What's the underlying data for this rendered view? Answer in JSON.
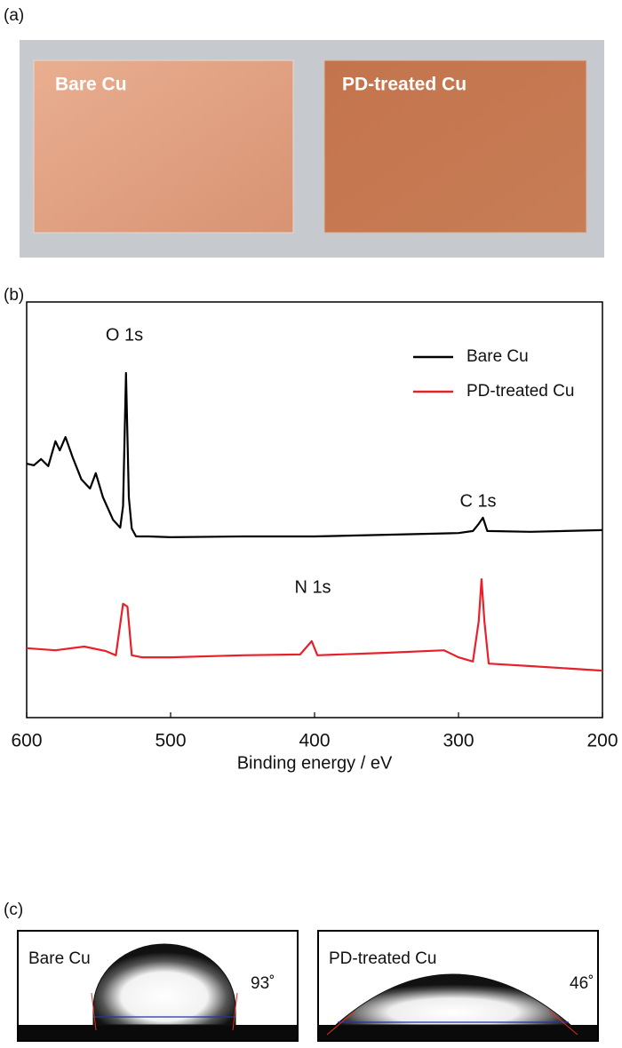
{
  "panel_a": {
    "label": "(a)",
    "photo_labels": [
      "Bare Cu",
      "PD-treated Cu"
    ]
  },
  "panel_b": {
    "label": "(b)"
  },
  "chart_data": {
    "type": "line",
    "xlabel": "Binding energy / eV",
    "xlim": [
      600,
      200
    ],
    "xticks": [
      600,
      500,
      400,
      300,
      200
    ],
    "ylim": [
      0,
      100
    ],
    "grid": false,
    "legend": "top-right",
    "annotations": [
      "O 1s",
      "C 1s",
      "N 1s"
    ],
    "series": [
      {
        "name": "Bare Cu",
        "color": "#000000",
        "x": [
          600,
          595,
          590,
          585,
          580,
          577,
          573,
          568,
          562,
          556,
          552,
          547,
          540,
          535,
          533,
          531,
          529,
          527,
          524,
          515,
          500,
          450,
          400,
          350,
          300,
          290,
          286,
          283,
          280,
          250,
          200
        ],
        "values": [
          61.1,
          60.7,
          62.2,
          60.5,
          66.5,
          64.3,
          67.5,
          62.6,
          57.3,
          55.1,
          58.8,
          53.0,
          47.6,
          45.7,
          50.9,
          82.9,
          53.0,
          45.5,
          43.6,
          43.6,
          43.4,
          43.6,
          43.6,
          44.0,
          44.4,
          44.9,
          46.6,
          48.1,
          44.9,
          44.7,
          45.1
        ]
      },
      {
        "name": "PD-treated Cu",
        "color": "#e8202a",
        "x": [
          600,
          580,
          560,
          545,
          538,
          533,
          530,
          527,
          520,
          500,
          450,
          410,
          402,
          398,
          350,
          310,
          300,
          290,
          286,
          284,
          282,
          279,
          250,
          200
        ],
        "values": [
          16.7,
          16.2,
          17.1,
          16.0,
          15.0,
          27.4,
          26.7,
          15.0,
          14.5,
          14.5,
          15.0,
          15.2,
          18.4,
          15.0,
          15.6,
          16.2,
          14.5,
          13.5,
          23.1,
          33.3,
          23.1,
          13.0,
          12.4,
          11.3
        ]
      }
    ]
  },
  "panel_c": {
    "label": "(c)",
    "boxes": [
      {
        "label": "Bare Cu",
        "angle": "93˚"
      },
      {
        "label": "PD-treated Cu",
        "angle": "46˚"
      }
    ]
  }
}
